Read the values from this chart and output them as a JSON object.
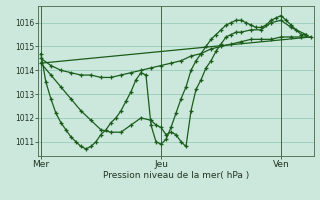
{
  "xlabel": "Pression niveau de la mer( hPa )",
  "bg_color": "#cce8dd",
  "grid_color": "#99ccbb",
  "line_color": "#1a5c1a",
  "xtick_labels": [
    "Mer",
    "Jeu",
    "Ven"
  ],
  "xtick_positions": [
    0,
    48,
    96
  ],
  "ylim": [
    1010.4,
    1016.7
  ],
  "yticks": [
    1011,
    1012,
    1013,
    1014,
    1015,
    1016
  ],
  "xlim": [
    -1,
    109
  ],
  "series1_x": [
    0,
    2,
    4,
    6,
    8,
    10,
    12,
    14,
    16,
    18,
    20,
    22,
    24,
    26,
    28,
    30,
    32,
    34,
    36,
    38,
    40,
    42,
    44,
    46,
    48,
    50,
    52,
    54,
    56,
    58,
    60,
    62,
    64,
    66,
    68,
    70,
    72,
    74,
    76,
    78,
    80,
    82,
    84,
    86,
    88,
    90,
    92,
    94,
    96,
    98,
    100,
    102,
    104,
    106
  ],
  "series1_y": [
    1014.7,
    1013.5,
    1012.8,
    1012.2,
    1011.8,
    1011.5,
    1011.2,
    1011.0,
    1010.8,
    1010.7,
    1010.8,
    1011.0,
    1011.3,
    1011.5,
    1011.8,
    1012.0,
    1012.3,
    1012.7,
    1013.1,
    1013.6,
    1013.9,
    1013.8,
    1011.7,
    1011.0,
    1010.9,
    1011.1,
    1011.6,
    1012.2,
    1012.8,
    1013.3,
    1014.0,
    1014.4,
    1014.7,
    1015.0,
    1015.3,
    1015.5,
    1015.7,
    1015.9,
    1016.0,
    1016.1,
    1016.1,
    1016.0,
    1015.9,
    1015.8,
    1015.8,
    1015.9,
    1016.1,
    1016.2,
    1016.3,
    1016.1,
    1015.9,
    1015.7,
    1015.5,
    1015.5
  ],
  "series2_x": [
    0,
    4,
    8,
    12,
    16,
    20,
    24,
    28,
    32,
    36,
    40,
    44,
    48,
    52,
    56,
    60,
    64,
    68,
    72,
    76,
    80,
    84,
    88,
    92,
    96,
    100,
    104,
    108
  ],
  "series2_y": [
    1014.5,
    1014.2,
    1014.0,
    1013.9,
    1013.8,
    1013.8,
    1013.7,
    1013.7,
    1013.8,
    1013.9,
    1014.0,
    1014.1,
    1014.2,
    1014.3,
    1014.4,
    1014.6,
    1014.7,
    1014.9,
    1015.0,
    1015.1,
    1015.2,
    1015.3,
    1015.3,
    1015.3,
    1015.4,
    1015.4,
    1015.4,
    1015.4
  ],
  "series3_x": [
    0,
    4,
    8,
    12,
    16,
    20,
    24,
    28,
    32,
    36,
    40,
    44,
    46,
    48,
    50,
    52,
    54,
    56,
    58,
    60,
    62,
    64,
    66,
    68,
    70,
    72,
    74,
    76,
    78,
    80,
    84,
    88,
    92,
    96,
    100,
    106
  ],
  "series3_y": [
    1014.3,
    1013.8,
    1013.3,
    1012.8,
    1012.3,
    1011.9,
    1011.5,
    1011.4,
    1011.4,
    1011.7,
    1012.0,
    1011.9,
    1011.7,
    1011.6,
    1011.3,
    1011.4,
    1011.3,
    1011.0,
    1010.8,
    1012.3,
    1013.2,
    1013.6,
    1014.1,
    1014.4,
    1014.8,
    1015.1,
    1015.4,
    1015.5,
    1015.6,
    1015.6,
    1015.7,
    1015.7,
    1016.0,
    1016.1,
    1015.8,
    1015.5
  ],
  "series4_x": [
    0,
    108
  ],
  "series4_y": [
    1014.3,
    1015.4
  ]
}
